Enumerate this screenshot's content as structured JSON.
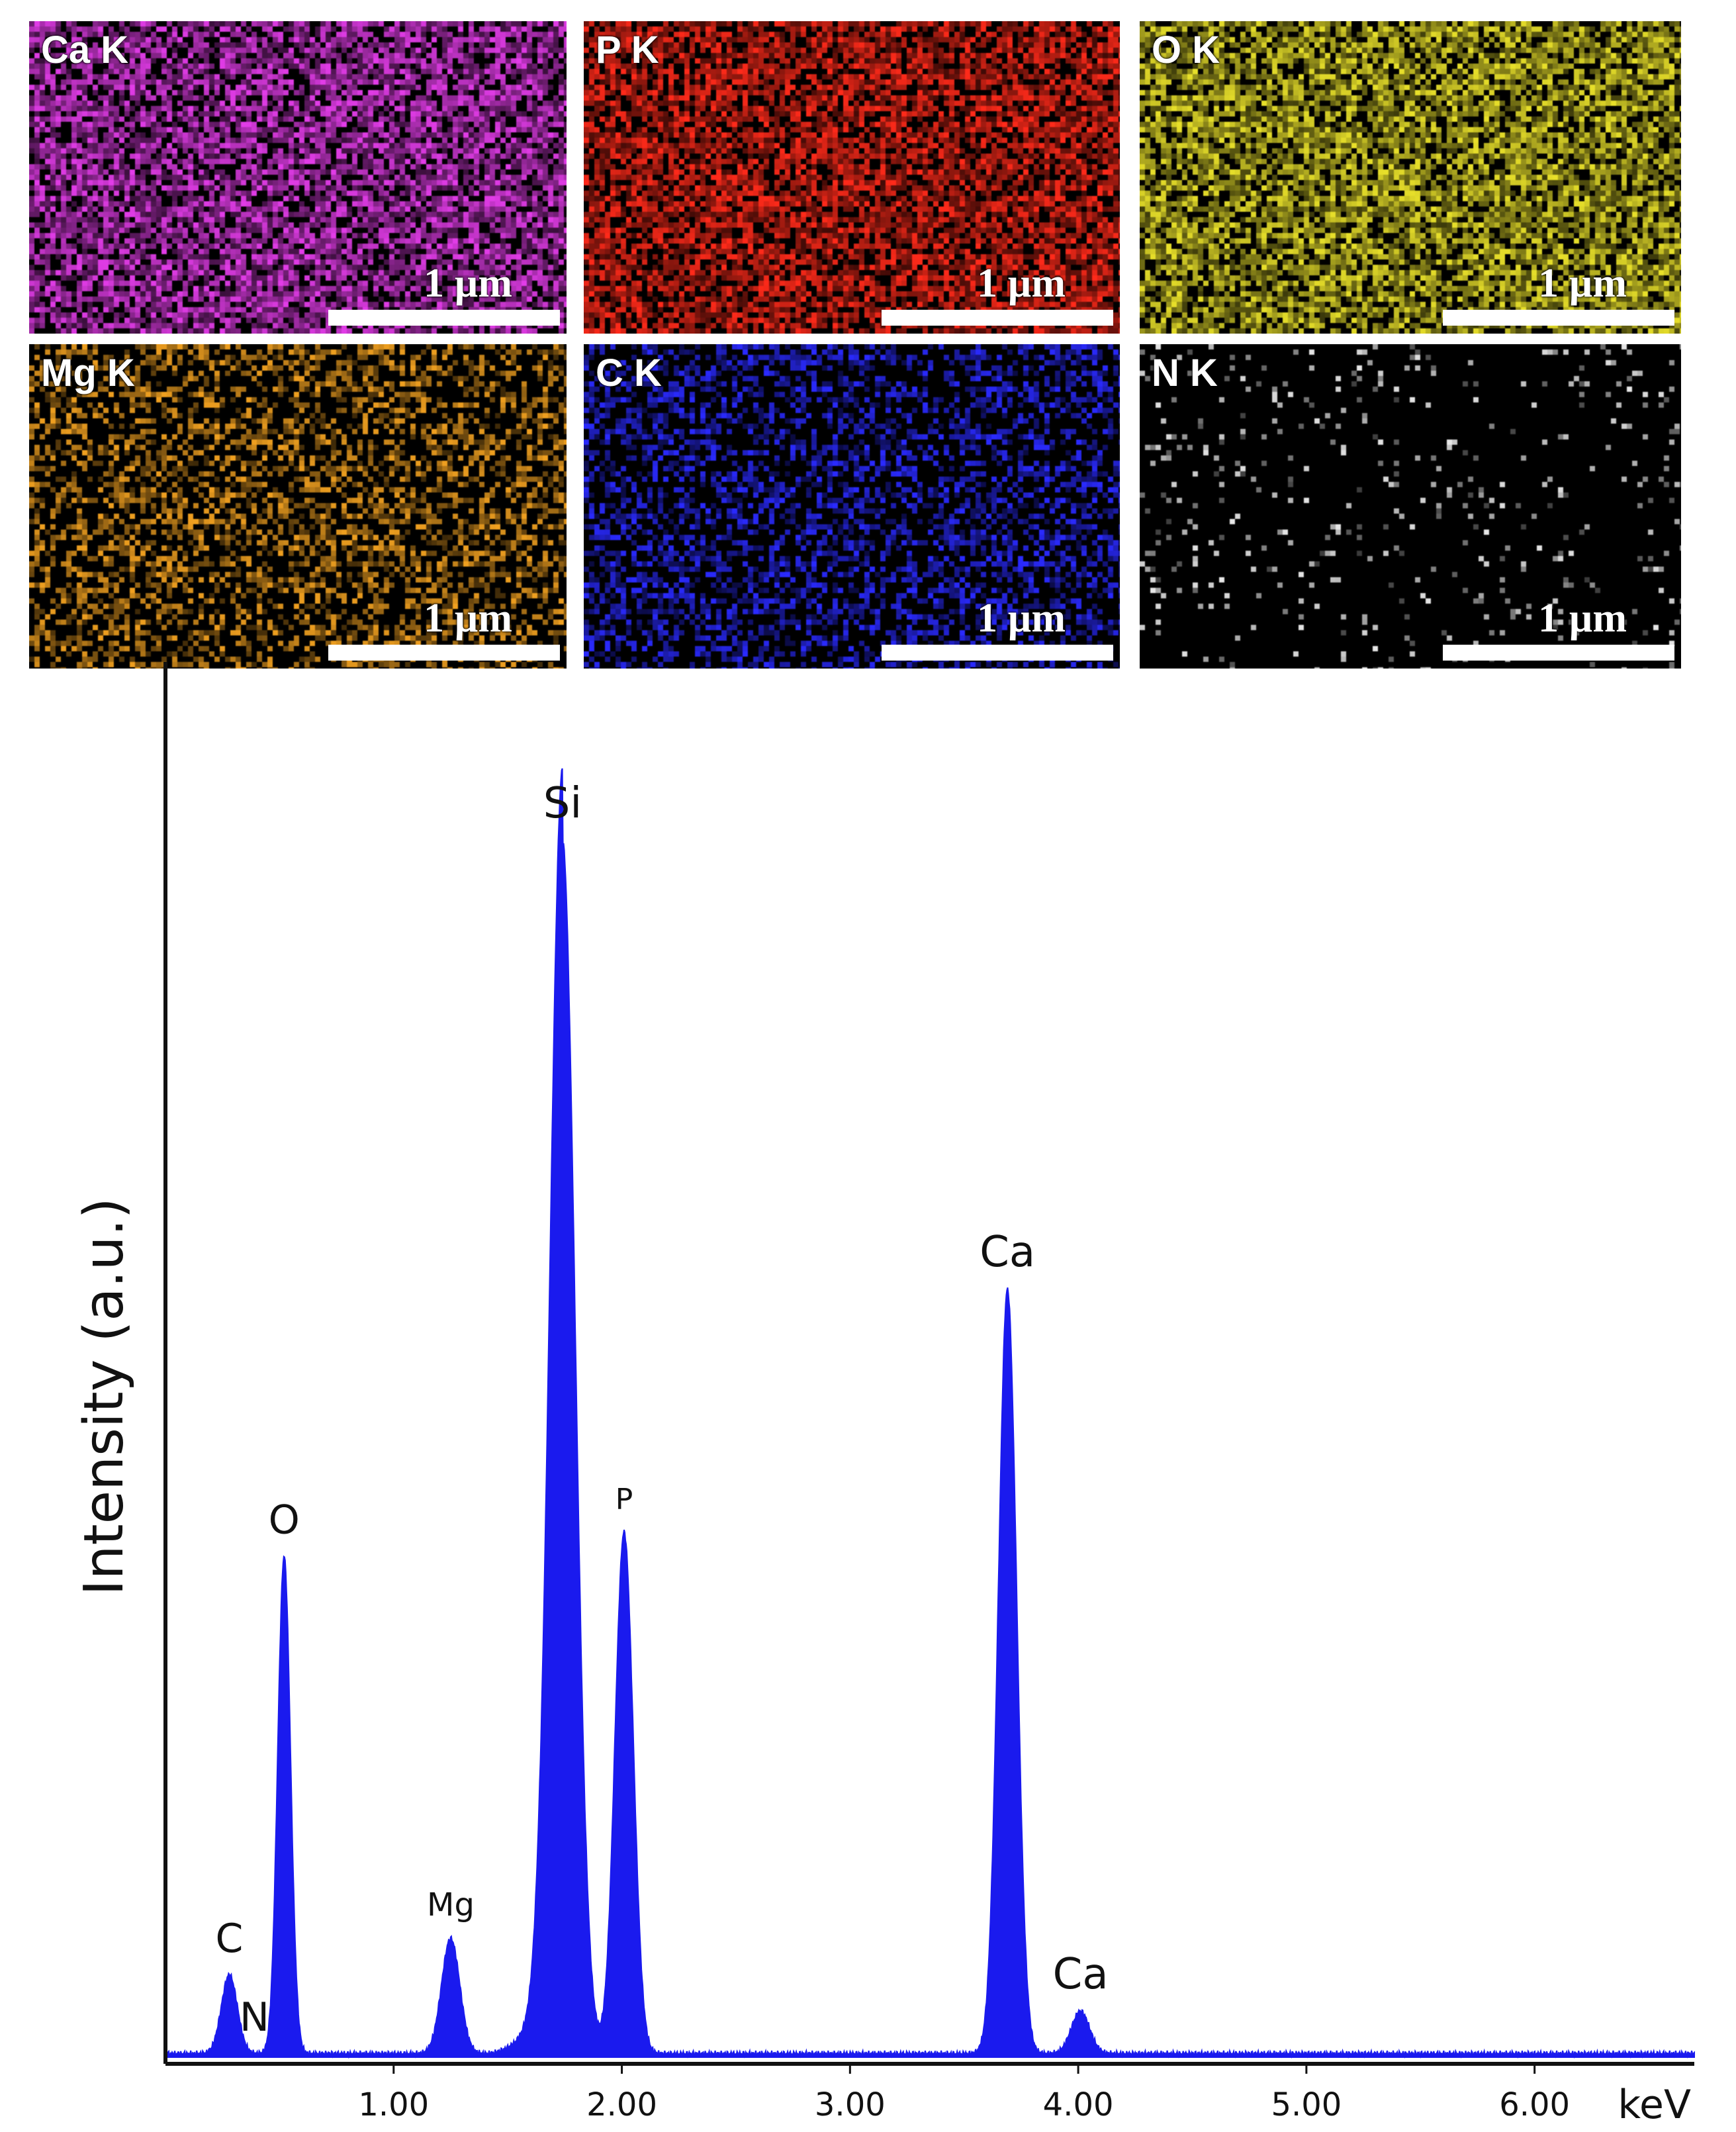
{
  "maps": [
    {
      "id": "ca",
      "label": "Ca K",
      "scale": "1 µm",
      "color": "#e23ce8",
      "density": 0.75
    },
    {
      "id": "p",
      "label": "P K",
      "scale": "1 µm",
      "color": "#ff2a1a",
      "density": 0.75
    },
    {
      "id": "o",
      "label": "O K",
      "scale": "1 µm",
      "color": "#e8e02a",
      "density": 0.75
    },
    {
      "id": "mg",
      "label": "Mg K",
      "scale": "1 µm",
      "color": "#f0a020",
      "density": 0.45
    },
    {
      "id": "c",
      "label": "C K",
      "scale": "1 µm",
      "color": "#2a2aff",
      "density": 0.45
    },
    {
      "id": "n",
      "label": "N K",
      "scale": "1 µm",
      "color": "#e8e8e8",
      "density": 0.06
    }
  ],
  "chart_data": {
    "type": "area",
    "title": "",
    "xlabel": "keV",
    "ylabel": "Intensity (a.u.)",
    "xlim": [
      0.0,
      6.7
    ],
    "ylim": [
      0,
      100
    ],
    "xticks": [
      1.0,
      2.0,
      3.0,
      4.0,
      5.0,
      6.0
    ],
    "xtick_labels": [
      "1.00",
      "2.00",
      "3.00",
      "4.00",
      "5.00",
      "6.00"
    ],
    "series_color": "#1a1aee",
    "peaks": [
      {
        "element": "C",
        "energy": 0.28,
        "height": 6.5
      },
      {
        "element": "N",
        "energy": 0.39,
        "height": 0
      },
      {
        "element": "O",
        "energy": 0.52,
        "height": 41
      },
      {
        "element": "Mg",
        "energy": 1.25,
        "height": 9.5
      },
      {
        "element": "Si",
        "energy": 1.74,
        "height": 100
      },
      {
        "element": "P",
        "energy": 2.01,
        "height": 43
      },
      {
        "element": "Ca",
        "energy": 3.69,
        "height": 63
      },
      {
        "element": "Ca",
        "energy": 4.01,
        "height": 3.5
      }
    ],
    "baseline": 0.3
  }
}
